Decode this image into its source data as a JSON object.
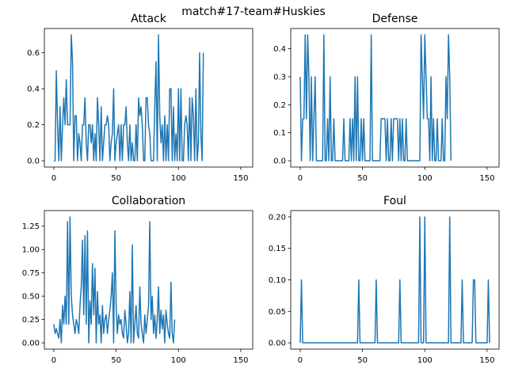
{
  "suptitle": "match#17-team#Huskies",
  "line_color": "#1f77b4",
  "chart_data": [
    {
      "type": "line",
      "title": "Attack",
      "xlim": [
        -7.6,
        159.6
      ],
      "ylim": [
        -0.035,
        0.735
      ],
      "xticks": [
        0,
        50,
        100,
        150
      ],
      "yticks": [
        0.0,
        0.2,
        0.4,
        0.6
      ],
      "ytick_labels": [
        "0.0",
        "0.2",
        "0.4",
        "0.6"
      ],
      "grid": false,
      "series": [
        {
          "values": [
            0,
            0,
            0.5,
            0.2,
            0,
            0.3,
            0,
            0.2,
            0.35,
            0.2,
            0.45,
            0.2,
            0.2,
            0.2,
            0.7,
            0.55,
            0,
            0.25,
            0.25,
            0,
            0.15,
            0.1,
            0,
            0.2,
            0.2,
            0.35,
            0.1,
            0,
            0.2,
            0.2,
            0.1,
            0.2,
            0,
            0.15,
            0,
            0.35,
            0.2,
            0,
            0.3,
            0,
            0.1,
            0.2,
            0.2,
            0.25,
            0.2,
            0,
            0.1,
            0.15,
            0.4,
            0,
            0.1,
            0.15,
            0.2,
            0,
            0.2,
            0,
            0.2,
            0.2,
            0.3,
            0.1,
            0,
            0.2,
            0,
            0.1,
            0,
            0,
            0.2,
            0,
            0.35,
            0.25,
            0.3,
            0.2,
            0,
            0,
            0.35,
            0.35,
            0.2,
            0.15,
            0,
            0,
            0,
            0.3,
            0.55,
            0,
            0.7,
            0.25,
            0.1,
            0.2,
            0,
            0.25,
            0,
            0.2,
            0,
            0.4,
            0.4,
            0,
            0.3,
            0,
            0.15,
            0,
            0.4,
            0,
            0.4,
            0,
            0,
            0.2,
            0.25,
            0.2,
            0,
            0.35,
            0,
            0.35,
            0.25,
            0,
            0.4,
            0,
            0.1,
            0.6,
            0.15,
            0,
            0.6
          ]
        }
      ]
    },
    {
      "type": "line",
      "title": "Defense",
      "xlim": [
        -7.6,
        159.6
      ],
      "ylim": [
        -0.0225,
        0.4725
      ],
      "xticks": [
        0,
        50,
        100,
        150
      ],
      "yticks": [
        0.0,
        0.1,
        0.2,
        0.3,
        0.4
      ],
      "ytick_labels": [
        "0.0",
        "0.1",
        "0.2",
        "0.3",
        "0.4"
      ],
      "grid": false,
      "series": [
        {
          "values": [
            0.3,
            0,
            0.15,
            0.15,
            0.45,
            0.15,
            0.45,
            0.3,
            0,
            0.3,
            0,
            0.15,
            0.3,
            0,
            0,
            0,
            0,
            0,
            0,
            0.45,
            0,
            0,
            0.15,
            0,
            0.3,
            0,
            0,
            0.15,
            0,
            0,
            0,
            0,
            0,
            0,
            0,
            0.15,
            0,
            0,
            0,
            0,
            0.15,
            0,
            0.15,
            0,
            0.3,
            0,
            0.3,
            0,
            0,
            0.15,
            0,
            0.15,
            0,
            0,
            0,
            0,
            0,
            0.45,
            0,
            0,
            0,
            0,
            0,
            0,
            0,
            0.15,
            0.15,
            0.15,
            0.15,
            0,
            0.15,
            0,
            0,
            0.15,
            0,
            0.15,
            0.15,
            0.15,
            0.15,
            0,
            0.15,
            0,
            0.15,
            0,
            0,
            0.15,
            0,
            0,
            0,
            0,
            0,
            0,
            0,
            0,
            0,
            0,
            0,
            0.45,
            0.3,
            0.15,
            0.45,
            0.3,
            0.15,
            0.15,
            0,
            0.3,
            0,
            0.15,
            0,
            0,
            0.15,
            0,
            0,
            0,
            0.15,
            0,
            0,
            0.3,
            0.15,
            0.45,
            0.3,
            0
          ]
        }
      ]
    },
    {
      "type": "line",
      "title": "Collaboration",
      "xlim": [
        -7.6,
        159.6
      ],
      "ylim": [
        -0.0675,
        1.4175
      ],
      "xticks": [
        0,
        50,
        100,
        150
      ],
      "yticks": [
        0.0,
        0.25,
        0.5,
        0.75,
        1.0,
        1.25
      ],
      "ytick_labels": [
        "0.00",
        "0.25",
        "0.50",
        "0.75",
        "1.00",
        "1.25"
      ],
      "grid": false,
      "series": [
        {
          "values": [
            0.2,
            0.1,
            0.15,
            0.1,
            0.05,
            0.25,
            0,
            0.4,
            0.2,
            0.5,
            0.2,
            1.3,
            0.2,
            1.35,
            0.5,
            0.3,
            0.2,
            0.1,
            0.25,
            0.2,
            0.1,
            0.4,
            0.6,
            1.1,
            0.3,
            1.15,
            0.2,
            1.2,
            0,
            0.45,
            0.2,
            0.85,
            0.3,
            0.8,
            0,
            0.55,
            0.2,
            0.3,
            0,
            0.4,
            0.1,
            0.25,
            0.3,
            0.1,
            0.25,
            0.35,
            0.5,
            0.75,
            0,
            1.2,
            0.4,
            0.1,
            0.3,
            0.2,
            0.25,
            0.1,
            0.05,
            0.35,
            0.2,
            0,
            0.1,
            0.55,
            0,
            1.05,
            0,
            0.2,
            0.4,
            0.1,
            0.05,
            0.6,
            0.2,
            0.1,
            0,
            0.3,
            0.1,
            0.25,
            0.4,
            1.3,
            0.25,
            0.5,
            0.1,
            0.3,
            0.05,
            0.25,
            0.6,
            0.1,
            0.35,
            0.15,
            0.3,
            0,
            0.35,
            0.2,
            0.1,
            0.05,
            0.65,
            0.1,
            0,
            0.25
          ]
        }
      ]
    },
    {
      "type": "line",
      "title": "Foul",
      "xlim": [
        -7.6,
        159.6
      ],
      "ylim": [
        -0.01,
        0.21
      ],
      "xticks": [
        0,
        50,
        100,
        150
      ],
      "yticks": [
        0.0,
        0.05,
        0.1,
        0.15,
        0.2
      ],
      "ytick_labels": [
        "0.00",
        "0.05",
        "0.10",
        "0.15",
        "0.20"
      ],
      "grid": false,
      "series": [
        {
          "x": [
            0,
            1,
            2,
            46,
            47,
            48,
            60,
            61,
            62,
            79,
            80,
            81,
            95,
            96,
            97,
            99,
            100,
            101,
            119,
            120,
            121,
            129,
            130,
            131,
            138,
            139,
            140,
            141,
            150,
            151,
            152
          ],
          "values": [
            0,
            0.1,
            0,
            0,
            0.1,
            0,
            0,
            0.1,
            0,
            0,
            0.1,
            0,
            0,
            0.2,
            0,
            0,
            0.2,
            0,
            0,
            0.2,
            0,
            0,
            0.1,
            0,
            0,
            0.1,
            0.1,
            0,
            0,
            0.1,
            0
          ]
        }
      ]
    }
  ]
}
